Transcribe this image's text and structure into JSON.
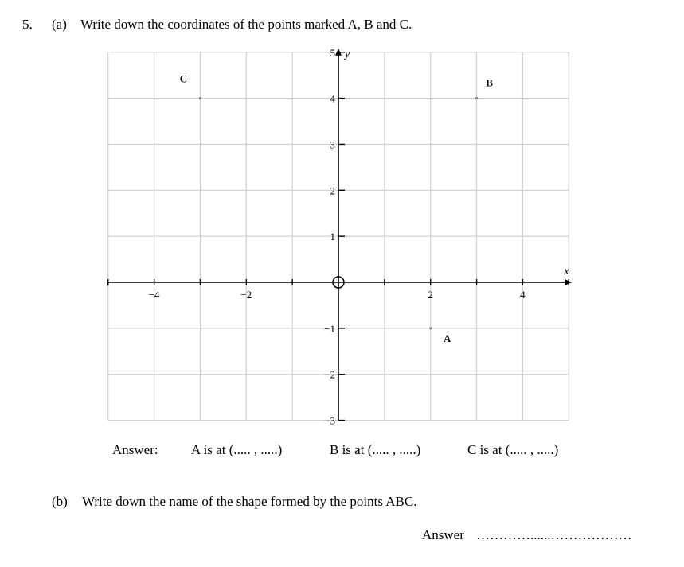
{
  "question": {
    "number": "5.",
    "part_a_label": "(a)",
    "part_a_text": "Write down the coordinates of the points marked A, B and C.",
    "answer_label": "Answer:",
    "answer_a": "A is at (..... , .....)",
    "answer_b": "B is at (..... , .....)",
    "answer_c": "C is at (..... , .....)",
    "part_b_label": "(b)",
    "part_b_text": "Write down the name of the shape formed by the points ABC.",
    "answer_b_label": "Answer",
    "answer_b_line": "…………......………………"
  },
  "chart_data": {
    "type": "scatter",
    "xlabel": "x",
    "ylabel": "y",
    "xlim": [
      -5,
      5
    ],
    "ylim": [
      -3,
      5
    ],
    "grid": true,
    "x_tick_labels": [
      "−4",
      "−2",
      "2",
      "4"
    ],
    "x_tick_values": [
      -4,
      -2,
      2,
      4
    ],
    "y_tick_labels": [
      "−3",
      "−2",
      "−1",
      "1",
      "2",
      "3",
      "4",
      "5"
    ],
    "y_tick_values": [
      -3,
      -2,
      -1,
      1,
      2,
      3,
      4,
      5
    ],
    "origin_marker": "circle",
    "points": [
      {
        "label": "A",
        "x": 2,
        "y": -1
      },
      {
        "label": "B",
        "x": 3,
        "y": 4
      },
      {
        "label": "C",
        "x": -3,
        "y": 4
      }
    ]
  }
}
